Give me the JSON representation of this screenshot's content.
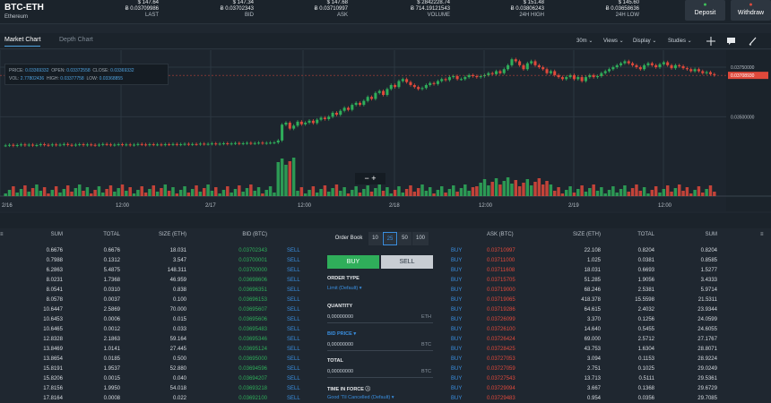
{
  "header": {
    "pair": "BTC-ETH",
    "subtitle": "Ethereum",
    "stats": [
      {
        "usd": "$ 147.64",
        "btc": "Ƀ 0.03709986",
        "label": "LAST"
      },
      {
        "usd": "$ 147.34",
        "btc": "Ƀ 0.03702343",
        "label": "BID"
      },
      {
        "usd": "$ 147.68",
        "btc": "Ƀ 0.03710997",
        "label": "ASK"
      },
      {
        "usd": "$ 2842228.74",
        "btc": "Ƀ 714.19121543",
        "label": "VOLUME"
      },
      {
        "usd": "$ 151.48",
        "btc": "Ƀ 0.03806243",
        "label": "24H HIGH"
      },
      {
        "usd": "$ 145.60",
        "btc": "Ƀ 0.03658636",
        "label": "24H LOW"
      }
    ],
    "deposit_label": "Deposit",
    "withdraw_label": "Withdraw"
  },
  "chart_header": {
    "tab_market": "Market Chart",
    "tab_depth": "Depth Chart",
    "interval": "30m ⌄",
    "views": "Views ⌄",
    "display": "Display ⌄",
    "studies": "Studies ⌄"
  },
  "ohlc": {
    "price_label": "PRICE:",
    "price": "0.03369332",
    "open_label": "OPEN:",
    "open": "0.03372558",
    "close_label": "CLOSE:",
    "close": "0.03369332",
    "vol_label": "VOL:",
    "vol": "2.77802436",
    "high_label": "HIGH:",
    "high": "0.03377758",
    "low_label": "LOW:",
    "low": "0.03368855"
  },
  "zoom_controls": "− +",
  "colors": {
    "up": "#2fae5a",
    "down": "#e0493b",
    "accent": "#4fa3e0"
  },
  "chart_data": {
    "type": "candlestick",
    "x_ticks": [
      "2/16",
      "12:00",
      "2/17",
      "12:00",
      "2/18",
      "12:00",
      "2/19",
      "12:00"
    ],
    "y_ticks": [
      "0.03750000",
      "0.03500000"
    ],
    "last_price_tag": "0.03708930",
    "y_range": [
      0.0328,
      0.038
    ],
    "closes": [
      0.03355,
      0.03358,
      0.03354,
      0.03357,
      0.0336,
      0.03356,
      0.03359,
      0.03355,
      0.03357,
      0.03361,
      0.03358,
      0.03356,
      0.0336,
      0.03357,
      0.03359,
      0.03362,
      0.03358,
      0.03356,
      0.03359,
      0.03361,
      0.03357,
      0.0336,
      0.03358,
      0.03356,
      0.03359,
      0.03362,
      0.0336,
      0.03357,
      0.03359,
      0.03361,
      0.03358,
      0.0336,
      0.03357,
      0.03359,
      0.03362,
      0.0336,
      0.03358,
      0.03361,
      0.03359,
      0.0336,
      0.03358,
      0.03361,
      0.0336,
      0.03362,
      0.03359,
      0.03361,
      0.03363,
      0.0336,
      0.03362,
      0.03361,
      0.03364,
      0.03362,
      0.03363,
      0.03365,
      0.03362,
      0.03364,
      0.03366,
      0.03363,
      0.03365,
      0.03367,
      0.03364,
      0.03366,
      0.03368,
      0.03365,
      0.03367,
      0.03369,
      0.03366,
      0.03368,
      0.03369,
      0.0337,
      0.0338,
      0.0346,
      0.0347,
      0.0344,
      0.03455,
      0.03475,
      0.03462,
      0.0347,
      0.0348,
      0.03468,
      0.03485,
      0.03495,
      0.03488,
      0.035,
      0.0352,
      0.0351,
      0.0353,
      0.03545,
      0.03535,
      0.0356,
      0.0357,
      0.0356,
      0.0358,
      0.036,
      0.0359,
      0.0362,
      0.0363,
      0.0361,
      0.0364,
      0.0366,
      0.0365,
      0.0368,
      0.0369,
      0.03675,
      0.0366,
      0.0365,
      0.0364,
      0.03645,
      0.0366,
      0.0367,
      0.03665,
      0.0368,
      0.0369,
      0.03685,
      0.037,
      0.03705,
      0.0369,
      0.0369,
      0.037,
      0.0371,
      0.03705,
      0.037,
      0.03705,
      0.0371,
      0.0372,
      0.03715,
      0.0373,
      0.0372,
      0.0374,
      0.0376,
      0.0379,
      0.0378,
      0.0376,
      0.0374,
      0.0377,
      0.0378,
      0.0376,
      0.0375,
      0.0374,
      0.0372,
      0.0373,
      0.0371,
      0.037,
      0.0369,
      0.037,
      0.0371,
      0.0369,
      0.037,
      0.0368,
      0.037,
      0.0371,
      0.037,
      0.03705,
      0.0372,
      0.0373,
      0.0374,
      0.0375,
      0.0376,
      0.0377,
      0.0378,
      0.0377,
      0.0376,
      0.0375,
      0.0374,
      0.0376,
      0.0377,
      0.0376,
      0.0375,
      0.03765,
      0.03775,
      0.0376,
      0.03745,
      0.0376,
      0.03755,
      0.03745,
      0.0374,
      0.0373,
      0.0374,
      0.0373,
      0.0372,
      0.03725,
      0.03715,
      0.0371
    ]
  },
  "orderbook_controls": {
    "label": "Order Book",
    "sizes": [
      "10",
      "25",
      "50",
      "100"
    ],
    "active": "25"
  },
  "bids": {
    "headers": [
      "SUM",
      "TOTAL",
      "SIZE (ETH)",
      "BID (BTC)"
    ],
    "action": "SELL",
    "rows": [
      [
        "0.6676",
        "0.6676",
        "18.031",
        "0.03702343"
      ],
      [
        "0.7988",
        "0.1312",
        "3.547",
        "0.03700001"
      ],
      [
        "6.2863",
        "5.4875",
        "148.311",
        "0.03700000"
      ],
      [
        "8.0231",
        "1.7368",
        "46.959",
        "0.03698606"
      ],
      [
        "8.0541",
        "0.0310",
        "0.838",
        "0.03696351"
      ],
      [
        "8.0578",
        "0.0037",
        "0.100",
        "0.03696153"
      ],
      [
        "10.6447",
        "2.5869",
        "70.000",
        "0.03695607"
      ],
      [
        "10.6453",
        "0.0006",
        "0.015",
        "0.03695606"
      ],
      [
        "10.6465",
        "0.0012",
        "0.033",
        "0.03695483"
      ],
      [
        "12.8328",
        "2.1863",
        "59.164",
        "0.03695346"
      ],
      [
        "13.8469",
        "1.0141",
        "27.445",
        "0.03695124"
      ],
      [
        "13.8654",
        "0.0185",
        "0.500",
        "0.03695000"
      ],
      [
        "15.8191",
        "1.9537",
        "52.880",
        "0.03694596"
      ],
      [
        "15.8206",
        "0.0015",
        "0.040",
        "0.03694207"
      ],
      [
        "17.8156",
        "1.9950",
        "54.018",
        "0.03693218"
      ],
      [
        "17.8164",
        "0.0008",
        "0.022",
        "0.03692100"
      ]
    ]
  },
  "asks": {
    "headers": [
      "ASK (BTC)",
      "SIZE (ETH)",
      "TOTAL",
      "SUM"
    ],
    "action": "BUY",
    "rows": [
      [
        "0.03710997",
        "22.108",
        "0.8204",
        "0.8204"
      ],
      [
        "0.03711000",
        "1.025",
        "0.0381",
        "0.8585"
      ],
      [
        "0.03711608",
        "18.031",
        "0.6693",
        "1.5277"
      ],
      [
        "0.03715705",
        "51.285",
        "1.9056",
        "3.4333"
      ],
      [
        "0.03719000",
        "68.246",
        "2.5381",
        "5.9714"
      ],
      [
        "0.03719065",
        "418.378",
        "15.5598",
        "21.5311"
      ],
      [
        "0.03719286",
        "64.615",
        "2.4032",
        "23.9344"
      ],
      [
        "0.03726099",
        "3.370",
        "0.1256",
        "24.0599"
      ],
      [
        "0.03726100",
        "14.640",
        "0.5455",
        "24.6055"
      ],
      [
        "0.03726424",
        "69.000",
        "2.5712",
        "27.1767"
      ],
      [
        "0.03728425",
        "43.753",
        "1.6304",
        "28.8071"
      ],
      [
        "0.03727053",
        "3.094",
        "0.1153",
        "28.9224"
      ],
      [
        "0.03727059",
        "2.751",
        "0.1025",
        "29.0249"
      ],
      [
        "0.03727543",
        "13.713",
        "0.5111",
        "29.5361"
      ],
      [
        "0.03729094",
        "3.667",
        "0.1368",
        "29.6729"
      ],
      [
        "0.03729483",
        "0.954",
        "0.0356",
        "29.7085"
      ]
    ]
  },
  "form": {
    "buy_label": "BUY",
    "sell_label": "SELL",
    "order_type_label": "ORDER TYPE",
    "order_type_value": "Limit (Default)  ▾",
    "quantity_label": "QUANTITY",
    "quantity_value": "0,00000000",
    "quantity_unit": "ETH",
    "bid_price_label": "BID PRICE  ▾",
    "bid_price_value": "0,00000000",
    "bid_price_unit": "BTC",
    "total_label": "TOTAL",
    "total_value": "0,00000000",
    "total_unit": "BTC",
    "tif_label": "TIME IN FORCE  ⓘ",
    "tif_value": "Good 'Til Cancelled (Default)  ▾"
  }
}
